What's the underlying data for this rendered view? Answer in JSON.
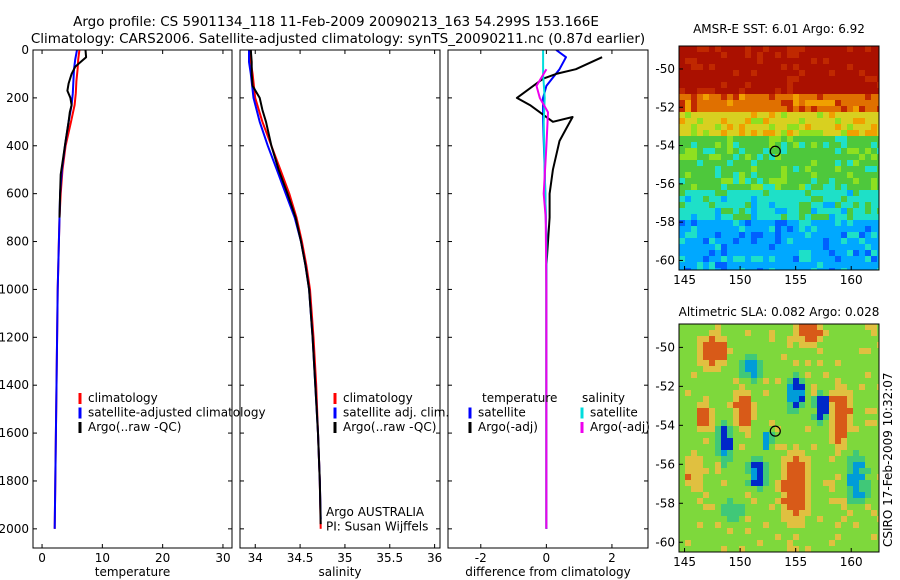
{
  "header": {
    "line1": "Argo profile: CS 5901134_118 11-Feb-2009 20090213_163 54.299S 153.166E",
    "line2": "Climatology: CARS2006. Satellite-adjusted climatology: synTS_20090211.nc (0.87d earlier)"
  },
  "credit": "CSIRO 17-Feb-2009 10:32:07",
  "chart_data": [
    {
      "type": "line",
      "id": "temperature",
      "xlabel": "temperature",
      "ylabel": "",
      "xlim": [
        -1.5,
        31.5
      ],
      "ylim": [
        2080,
        0
      ],
      "y_reversed": true,
      "xticks": [
        0,
        10,
        20,
        30
      ],
      "yticks": [
        0,
        200,
        400,
        600,
        800,
        1000,
        1200,
        1400,
        1600,
        1800,
        2000
      ],
      "legend": {
        "placement": "bottom-left",
        "entries": [
          "climatology",
          "satellite-adjusted climatology",
          "Argo(..raw -QC)"
        ]
      },
      "series": [
        {
          "name": "climatology",
          "color": "#ff0000",
          "points": [
            [
              6.2,
              0
            ],
            [
              6.0,
              40
            ],
            [
              5.9,
              80
            ],
            [
              5.7,
              130
            ],
            [
              5.6,
              180
            ],
            [
              5.4,
              230
            ],
            [
              4.8,
              300
            ],
            [
              3.9,
              400
            ],
            [
              3.4,
              500
            ],
            [
              3.1,
              600
            ],
            [
              2.9,
              700
            ],
            [
              2.8,
              800
            ],
            [
              2.6,
              1000
            ],
            [
              2.5,
              1200
            ],
            [
              2.4,
              1400
            ],
            [
              2.3,
              1600
            ],
            [
              2.2,
              1800
            ],
            [
              2.1,
              2000
            ]
          ]
        },
        {
          "name": "satellite-adjusted climatology",
          "color": "#0000ff",
          "points": [
            [
              5.8,
              0
            ],
            [
              5.5,
              40
            ],
            [
              5.3,
              80
            ],
            [
              5.2,
              130
            ],
            [
              5.1,
              180
            ],
            [
              4.9,
              230
            ],
            [
              4.4,
              300
            ],
            [
              3.8,
              400
            ],
            [
              3.3,
              500
            ],
            [
              3.0,
              600
            ],
            [
              2.9,
              700
            ],
            [
              2.8,
              800
            ],
            [
              2.6,
              1000
            ],
            [
              2.5,
              1200
            ],
            [
              2.4,
              1400
            ],
            [
              2.3,
              1600
            ],
            [
              2.2,
              1800
            ],
            [
              2.1,
              2000
            ]
          ]
        },
        {
          "name": "Argo(..raw -QC)",
          "color": "#000000",
          "points": [
            [
              7.2,
              0
            ],
            [
              7.3,
              30
            ],
            [
              6.4,
              50
            ],
            [
              5.5,
              70
            ],
            [
              4.9,
              100
            ],
            [
              4.4,
              140
            ],
            [
              4.2,
              170
            ],
            [
              4.7,
              200
            ],
            [
              4.9,
              230
            ],
            [
              4.6,
              260
            ],
            [
              4.4,
              300
            ],
            [
              3.9,
              380
            ],
            [
              3.5,
              450
            ],
            [
              3.1,
              520
            ],
            [
              3.0,
              600
            ],
            [
              2.9,
              700
            ]
          ]
        }
      ]
    },
    {
      "type": "line",
      "id": "salinity",
      "xlabel": "salinity",
      "ylabel": "",
      "xlim": [
        33.83,
        36.06
      ],
      "ylim": [
        2080,
        0
      ],
      "y_reversed": true,
      "xticks": [
        34,
        34.5,
        35,
        35.5,
        36
      ],
      "legend": {
        "placement": "bottom-left",
        "entries": [
          "climatology",
          "satellite adj. clim.",
          "Argo(..raw -QC)"
        ]
      },
      "annotations": [
        "Argo AUSTRALIA",
        "PI: Susan Wijffels"
      ],
      "series": [
        {
          "name": "climatology",
          "color": "#ff0000",
          "points": [
            [
              33.95,
              0
            ],
            [
              33.95,
              50
            ],
            [
              33.97,
              100
            ],
            [
              34.0,
              200
            ],
            [
              34.08,
              300
            ],
            [
              34.18,
              400
            ],
            [
              34.28,
              500
            ],
            [
              34.38,
              600
            ],
            [
              34.46,
              700
            ],
            [
              34.52,
              800
            ],
            [
              34.57,
              900
            ],
            [
              34.61,
              1000
            ],
            [
              34.65,
              1200
            ],
            [
              34.68,
              1400
            ],
            [
              34.7,
              1600
            ],
            [
              34.72,
              1800
            ],
            [
              34.73,
              2000
            ]
          ]
        },
        {
          "name": "satellite adj. clim.",
          "color": "#0000ff",
          "points": [
            [
              33.93,
              0
            ],
            [
              33.93,
              50
            ],
            [
              33.95,
              100
            ],
            [
              33.98,
              200
            ],
            [
              34.05,
              300
            ],
            [
              34.14,
              400
            ],
            [
              34.24,
              500
            ],
            [
              34.34,
              600
            ],
            [
              34.44,
              700
            ],
            [
              34.51,
              800
            ],
            [
              34.56,
              900
            ],
            [
              34.6,
              1000
            ],
            [
              34.64,
              1200
            ],
            [
              34.67,
              1400
            ],
            [
              34.7,
              1600
            ],
            [
              34.72,
              1800
            ],
            [
              34.73,
              1960
            ]
          ]
        },
        {
          "name": "Argo(..raw -QC)",
          "color": "#000000",
          "points": [
            [
              33.95,
              0
            ],
            [
              33.96,
              50
            ],
            [
              33.96,
              100
            ],
            [
              33.97,
              150
            ],
            [
              34.05,
              200
            ],
            [
              34.08,
              250
            ],
            [
              34.12,
              300
            ],
            [
              34.18,
              400
            ],
            [
              34.26,
              500
            ],
            [
              34.36,
              600
            ],
            [
              34.45,
              700
            ],
            [
              34.51,
              800
            ],
            [
              34.56,
              900
            ],
            [
              34.6,
              1000
            ],
            [
              34.64,
              1200
            ],
            [
              34.67,
              1400
            ],
            [
              34.7,
              1600
            ],
            [
              34.72,
              1800
            ],
            [
              34.73,
              1980
            ]
          ]
        }
      ]
    },
    {
      "type": "line",
      "id": "difference",
      "xlabel": "difference from climatology",
      "ylabel": "",
      "xlim": [
        -3.0,
        3.1
      ],
      "ylim": [
        2080,
        0
      ],
      "y_reversed": true,
      "xticks": [
        -2,
        0,
        2
      ],
      "legend": {
        "placement": "bottom-center",
        "columns": [
          {
            "title": "temperature",
            "entries": [
              "satellite",
              "Argo(-adj)"
            ]
          },
          {
            "title": "salinity",
            "entries": [
              "satellite",
              "Argo(-adj)"
            ]
          }
        ]
      },
      "series": [
        {
          "name": "satellite",
          "group": "temperature",
          "color": "#0000ff",
          "points": [
            [
              0.3,
              0
            ],
            [
              0.6,
              30
            ],
            [
              0.4,
              80
            ],
            [
              0.0,
              150
            ],
            [
              -0.1,
              200
            ],
            [
              -0.1,
              300
            ],
            [
              -0.05,
              500
            ],
            [
              0.0,
              800
            ],
            [
              0.0,
              1200
            ],
            [
              0.0,
              2000
            ]
          ]
        },
        {
          "name": "Argo(-adj)",
          "group": "temperature",
          "color": "#000000",
          "points": [
            [
              1.7,
              30
            ],
            [
              0.9,
              80
            ],
            [
              0.3,
              100
            ],
            [
              -0.1,
              120
            ],
            [
              -0.4,
              150
            ],
            [
              -0.9,
              200
            ],
            [
              -0.5,
              230
            ],
            [
              0.2,
              300
            ],
            [
              0.8,
              280
            ],
            [
              0.6,
              330
            ],
            [
              0.4,
              380
            ],
            [
              0.2,
              500
            ],
            [
              0.1,
              600
            ],
            [
              0.1,
              700
            ],
            [
              0.0,
              900
            ],
            [
              0.0,
              1200
            ],
            [
              0.0,
              1600
            ],
            [
              0.0,
              2000
            ]
          ]
        },
        {
          "name": "satellite",
          "group": "salinity",
          "color": "#00dddd",
          "points": [
            [
              -0.1,
              0
            ],
            [
              -0.1,
              100
            ],
            [
              -0.05,
              200
            ],
            [
              -0.08,
              300
            ],
            [
              -0.05,
              500
            ],
            [
              0.0,
              800
            ],
            [
              0.0,
              1200
            ],
            [
              0.0,
              2000
            ]
          ]
        },
        {
          "name": "Argo(-adj)",
          "group": "salinity",
          "color": "#ee00ee",
          "points": [
            [
              0.0,
              80
            ],
            [
              -0.3,
              150
            ],
            [
              -0.2,
              200
            ],
            [
              0.05,
              260
            ],
            [
              0.0,
              400
            ],
            [
              -0.08,
              600
            ],
            [
              -0.02,
              700
            ],
            [
              0.0,
              1000
            ],
            [
              0.0,
              2000
            ]
          ]
        }
      ]
    },
    {
      "type": "heatmap",
      "id": "sst-map",
      "title": "AMSR-E SST: 6.01  Argo: 6.92",
      "xlim": [
        144.5,
        162.5
      ],
      "ylim": [
        -60.5,
        -48.8
      ],
      "xticks": [
        145,
        150,
        155,
        160
      ],
      "yticks": [
        -50,
        -52,
        -54,
        -56,
        -58,
        -60
      ],
      "marker": {
        "lon": 153.166,
        "lat": -54.299
      },
      "colors": [
        "#0060ff",
        "#00a8ff",
        "#1ee0c8",
        "#4ec83c",
        "#8ee020",
        "#d8d020",
        "#f0a000",
        "#e07000",
        "#c02800",
        "#aa1000"
      ],
      "bands": [
        {
          "lat_top": -48.8,
          "lat_bottom": -51.2,
          "level": 9
        },
        {
          "lat_top": -51.2,
          "lat_bottom": -52.3,
          "level": 7
        },
        {
          "lat_top": -52.3,
          "lat_bottom": -53.4,
          "level": 5
        },
        {
          "lat_top": -53.4,
          "lat_bottom": -56.2,
          "level": 3
        },
        {
          "lat_top": -56.2,
          "lat_bottom": -58.0,
          "level": 2
        },
        {
          "lat_top": -58.0,
          "lat_bottom": -60.5,
          "level": 1
        }
      ]
    },
    {
      "type": "heatmap",
      "id": "sla-map",
      "title": "Altimetric SLA: 0.082  Argo: 0.028",
      "xlim": [
        144.5,
        162.5
      ],
      "ylim": [
        -60.5,
        -48.8
      ],
      "xticks": [
        145,
        150,
        155,
        160
      ],
      "yticks": [
        -50,
        -52,
        -54,
        -56,
        -58,
        -60
      ],
      "marker": {
        "lon": 153.166,
        "lat": -54.299
      },
      "colors": [
        "#0028c8",
        "#009cd8",
        "#40c878",
        "#7ed83c",
        "#e0c040",
        "#d85a18"
      ],
      "background_level": 3,
      "blobs": [
        {
          "lon": 147.5,
          "lat": -50.2,
          "rlon": 1.6,
          "rlat": 1.0,
          "level": 5
        },
        {
          "lon": 146.8,
          "lat": -53.6,
          "rlon": 0.9,
          "rlat": 0.8,
          "level": 5
        },
        {
          "lon": 148.6,
          "lat": -54.9,
          "rlon": 0.8,
          "rlat": 1.2,
          "level": 0
        },
        {
          "lon": 150.3,
          "lat": -53.2,
          "rlon": 1.0,
          "rlat": 1.2,
          "level": 5
        },
        {
          "lon": 155.0,
          "lat": -52.4,
          "rlon": 1.0,
          "rlat": 1.1,
          "level": 0
        },
        {
          "lon": 156.3,
          "lat": -49.2,
          "rlon": 1.5,
          "rlat": 0.7,
          "level": 5
        },
        {
          "lon": 159.0,
          "lat": -53.6,
          "rlon": 1.0,
          "rlat": 1.9,
          "level": 5
        },
        {
          "lon": 157.3,
          "lat": -53.0,
          "rlon": 0.9,
          "rlat": 0.9,
          "level": 0
        },
        {
          "lon": 155.0,
          "lat": -57.2,
          "rlon": 1.6,
          "rlat": 2.2,
          "level": 5
        },
        {
          "lon": 151.5,
          "lat": -56.5,
          "rlon": 1.0,
          "rlat": 0.9,
          "level": 0
        },
        {
          "lon": 152.4,
          "lat": -54.8,
          "rlon": 0.6,
          "rlat": 0.6,
          "level": 1
        },
        {
          "lon": 149.5,
          "lat": -58.3,
          "rlon": 1.6,
          "rlat": 0.9,
          "level": 2
        },
        {
          "lon": 160.6,
          "lat": -56.8,
          "rlon": 1.2,
          "rlat": 1.4,
          "level": 1
        },
        {
          "lon": 145.9,
          "lat": -56.4,
          "rlon": 1.0,
          "rlat": 1.0,
          "level": 4
        },
        {
          "lon": 151.0,
          "lat": -51.0,
          "rlon": 1.0,
          "rlat": 0.8,
          "level": 1
        }
      ]
    }
  ]
}
